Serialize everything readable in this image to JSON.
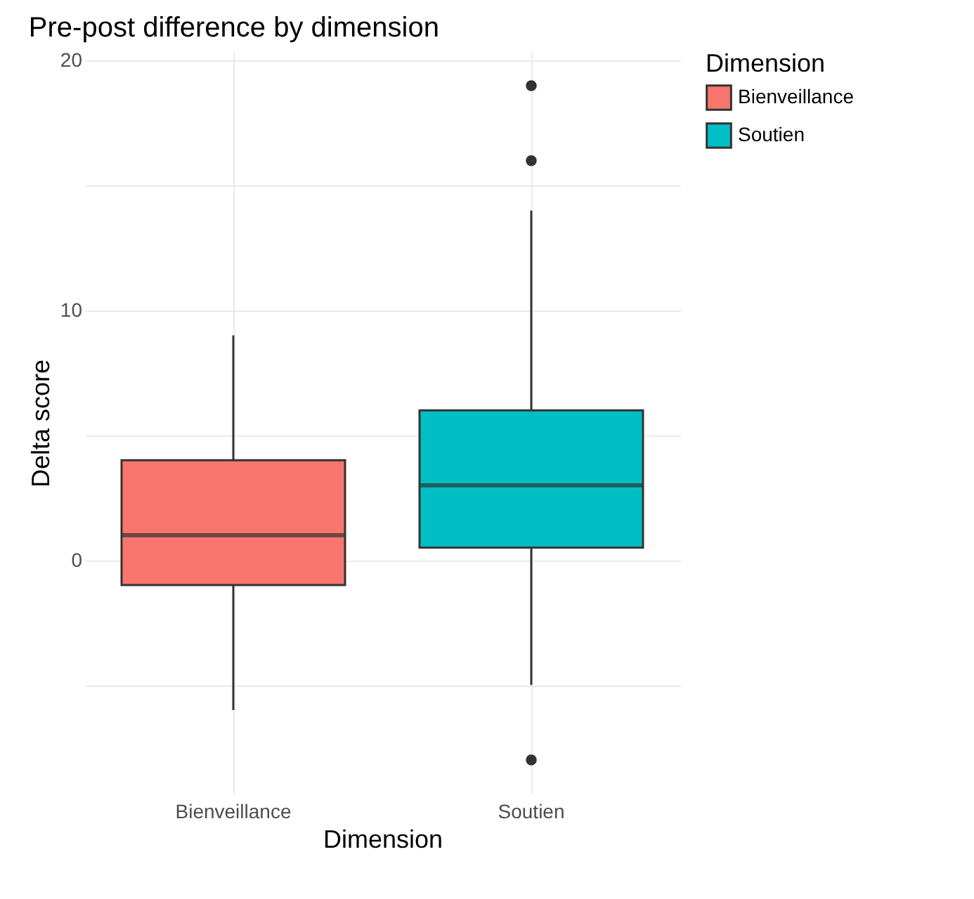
{
  "chart_data": {
    "type": "box",
    "title": "Pre-post difference by dimension",
    "xlabel": "Dimension",
    "ylabel": "Delta score",
    "legend_title": "Dimension",
    "categories": [
      "Bienveillance",
      "Soutien"
    ],
    "series": [
      {
        "name": "Bienveillance",
        "color": "#f8766d",
        "boxes": [
          {
            "low": -6,
            "q1": -1,
            "median": 1,
            "q3": 4,
            "high": 9
          },
          null
        ]
      },
      {
        "name": "Soutien",
        "color": "#00bfc4",
        "boxes": [
          null,
          {
            "low": -5,
            "q1": 0.5,
            "median": 3,
            "q3": 6,
            "high": 14,
            "outliers": [
              19,
              16,
              -8
            ]
          }
        ]
      }
    ],
    "ylim": [
      -9.35,
      20.35
    ],
    "yticks": [
      {
        "value": -5,
        "label": null
      },
      0,
      {
        "value": 5,
        "label": null
      },
      10,
      {
        "value": 15,
        "label": null
      },
      20
    ],
    "grid": true,
    "legend": "right"
  }
}
